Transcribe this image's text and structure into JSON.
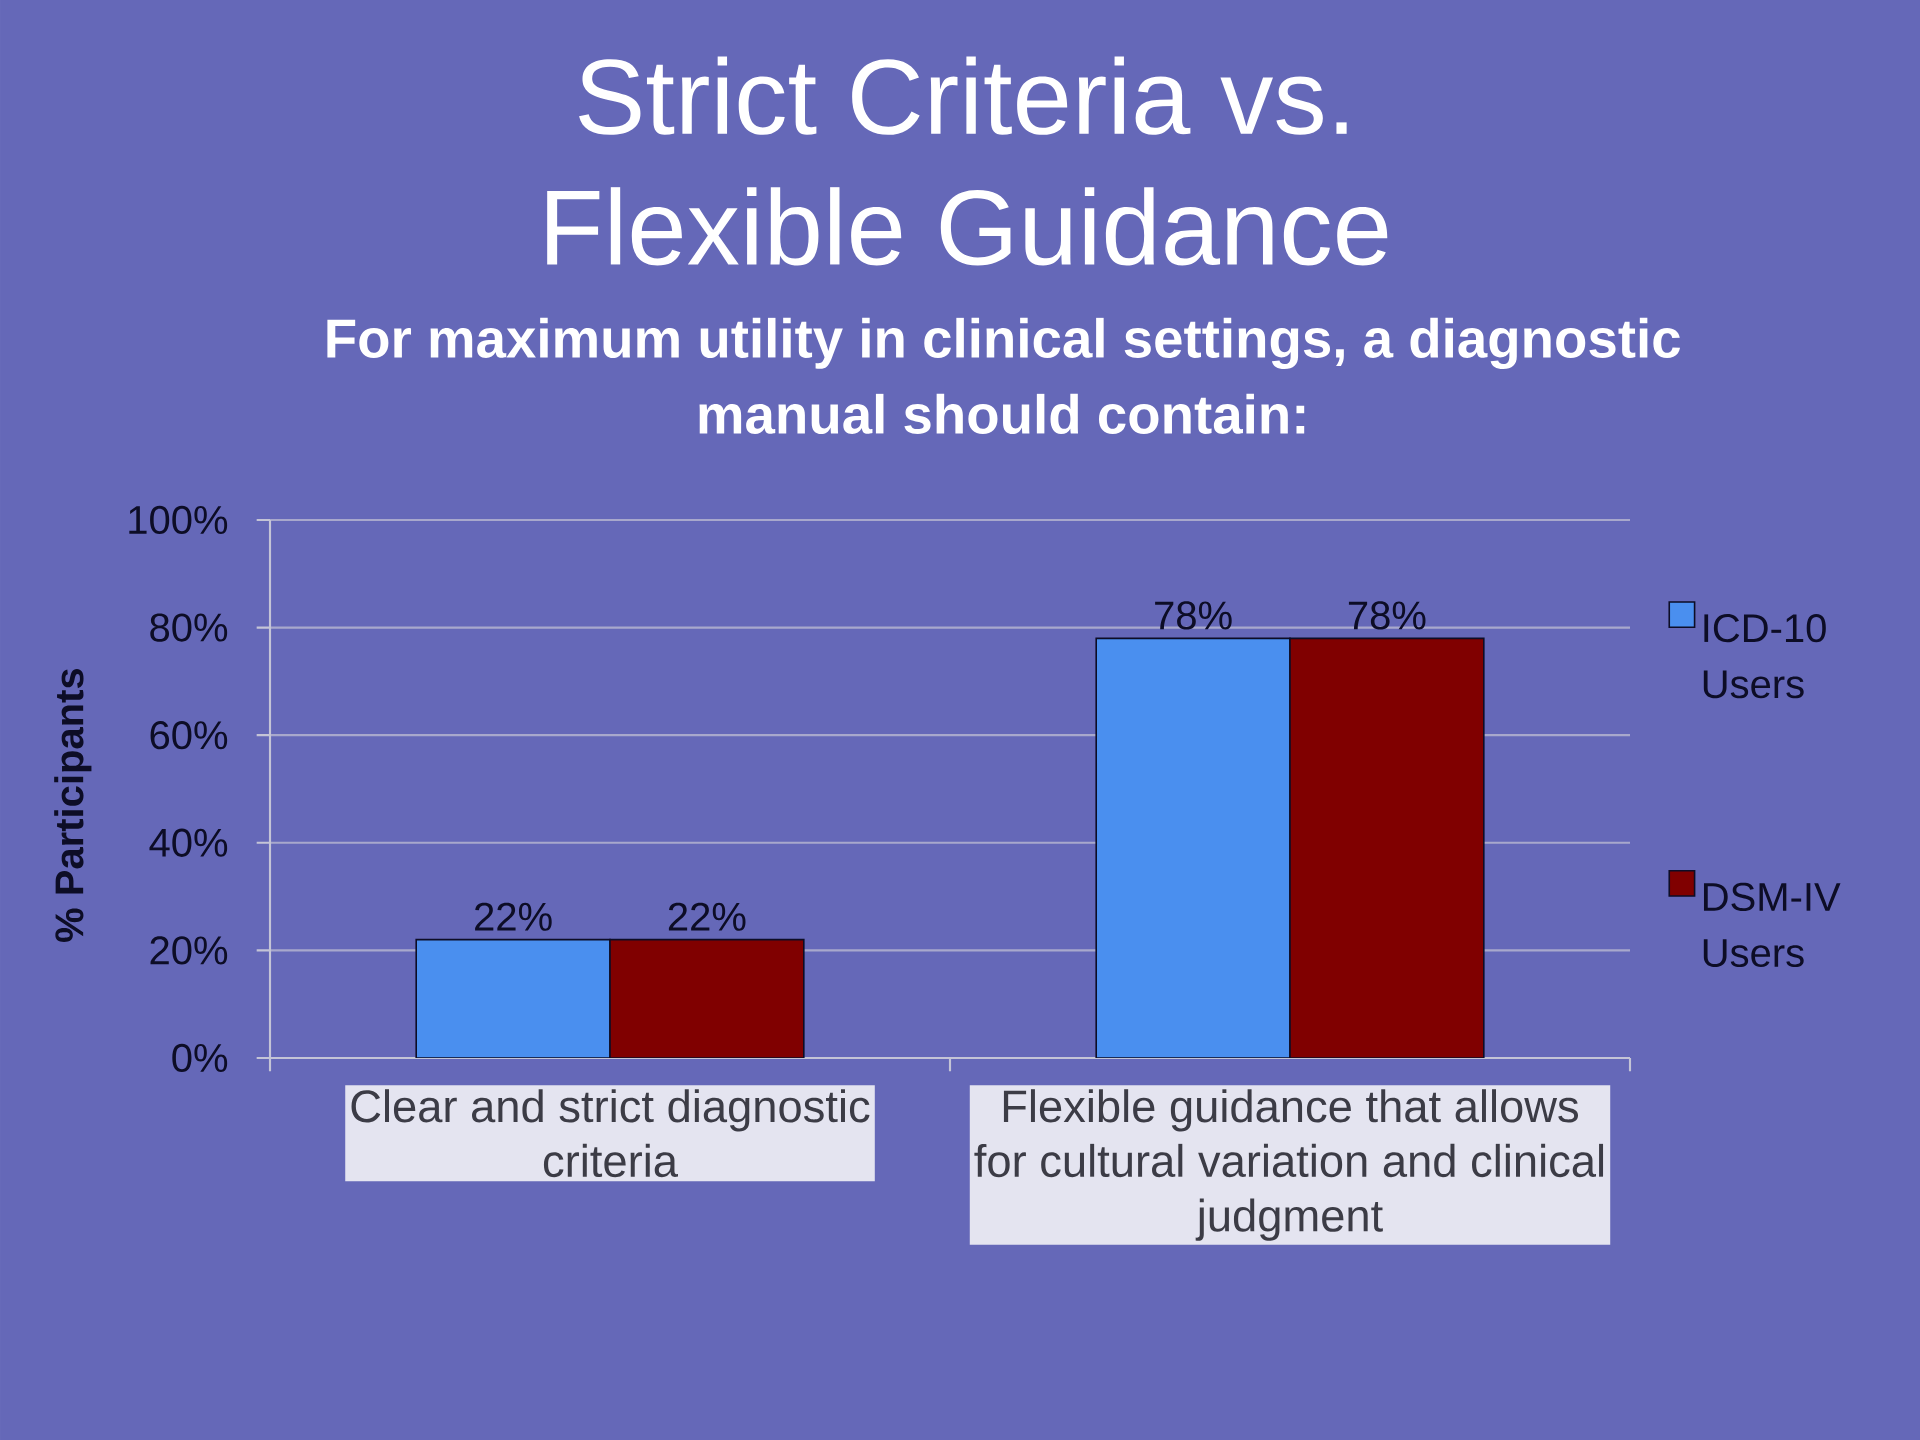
{
  "chart_data": {
    "type": "bar",
    "title": "Strict Criteria vs. Flexible Guidance",
    "subtitle": "For maximum utility in clinical settings, a diagnostic manual should contain:",
    "ylabel": "% Participants",
    "categories": [
      "Clear and strict diagnostic criteria",
      "Flexible guidance that allows for cultural variation and clinical judgment"
    ],
    "series": [
      {
        "name": "ICD-10 Users",
        "color": "#4a8fef",
        "values": [
          22,
          78
        ],
        "value_labels": [
          "22%",
          "78%"
        ]
      },
      {
        "name": "DSM-IV Users",
        "color": "#800000",
        "values": [
          22,
          78
        ],
        "value_labels": [
          "22%",
          "78%"
        ]
      }
    ],
    "ylim": [
      0,
      100
    ],
    "yticks": [
      {
        "value": 0,
        "label": "0%"
      },
      {
        "value": 20,
        "label": "20%"
      },
      {
        "value": 40,
        "label": "40%"
      },
      {
        "value": 60,
        "label": "60%"
      },
      {
        "value": 80,
        "label": "80%"
      },
      {
        "value": 100,
        "label": "100%"
      }
    ],
    "grid": "y",
    "legend": "right"
  }
}
